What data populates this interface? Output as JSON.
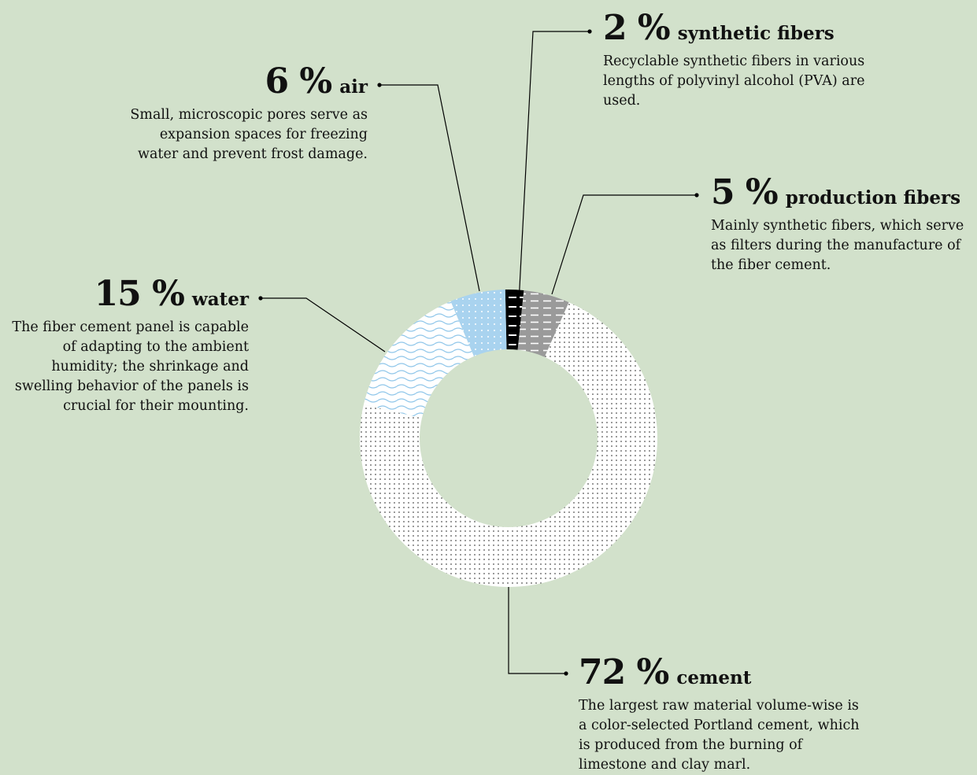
{
  "chart_data": {
    "type": "donut",
    "series": [
      {
        "name": "synthetic fibers",
        "value": 2,
        "pct_label": "2 %",
        "description": "Recyclable synthetic fibers in various lengths of polyvinyl alcohol (PVA) are used.",
        "pattern": "black-dashes",
        "color": "#000000"
      },
      {
        "name": "production fibers",
        "value": 5,
        "pct_label": "5 %",
        "description": "Mainly synthetic fibers, which serve as filters during the manufacture of the fiber cement.",
        "pattern": "gray-dashes",
        "color": "#9a9a9a"
      },
      {
        "name": "cement",
        "value": 72,
        "pct_label": "72 %",
        "description": "The largest raw material volume-wise is a color-selected Portland cement, which is produced from the burning of limestone and clay marl.",
        "pattern": "dots",
        "color": "#ffffff"
      },
      {
        "name": "water",
        "value": 15,
        "pct_label": "15 %",
        "description": "The fiber cement panel is capable of adapting to the ambient humidity; the shrinkage and swelling behavior of the panels is crucial for their mounting.",
        "pattern": "waves",
        "color": "#ffffff"
      },
      {
        "name": "air",
        "value": 6,
        "pct_label": "6 %",
        "description": "Small, microscopic pores serve as expansion spaces for freezing water and prevent frost damage.",
        "pattern": "blue-dots",
        "color": "#a9d3ef"
      }
    ],
    "colors": {
      "background": "#d2e1cb",
      "line": "#000000"
    }
  }
}
